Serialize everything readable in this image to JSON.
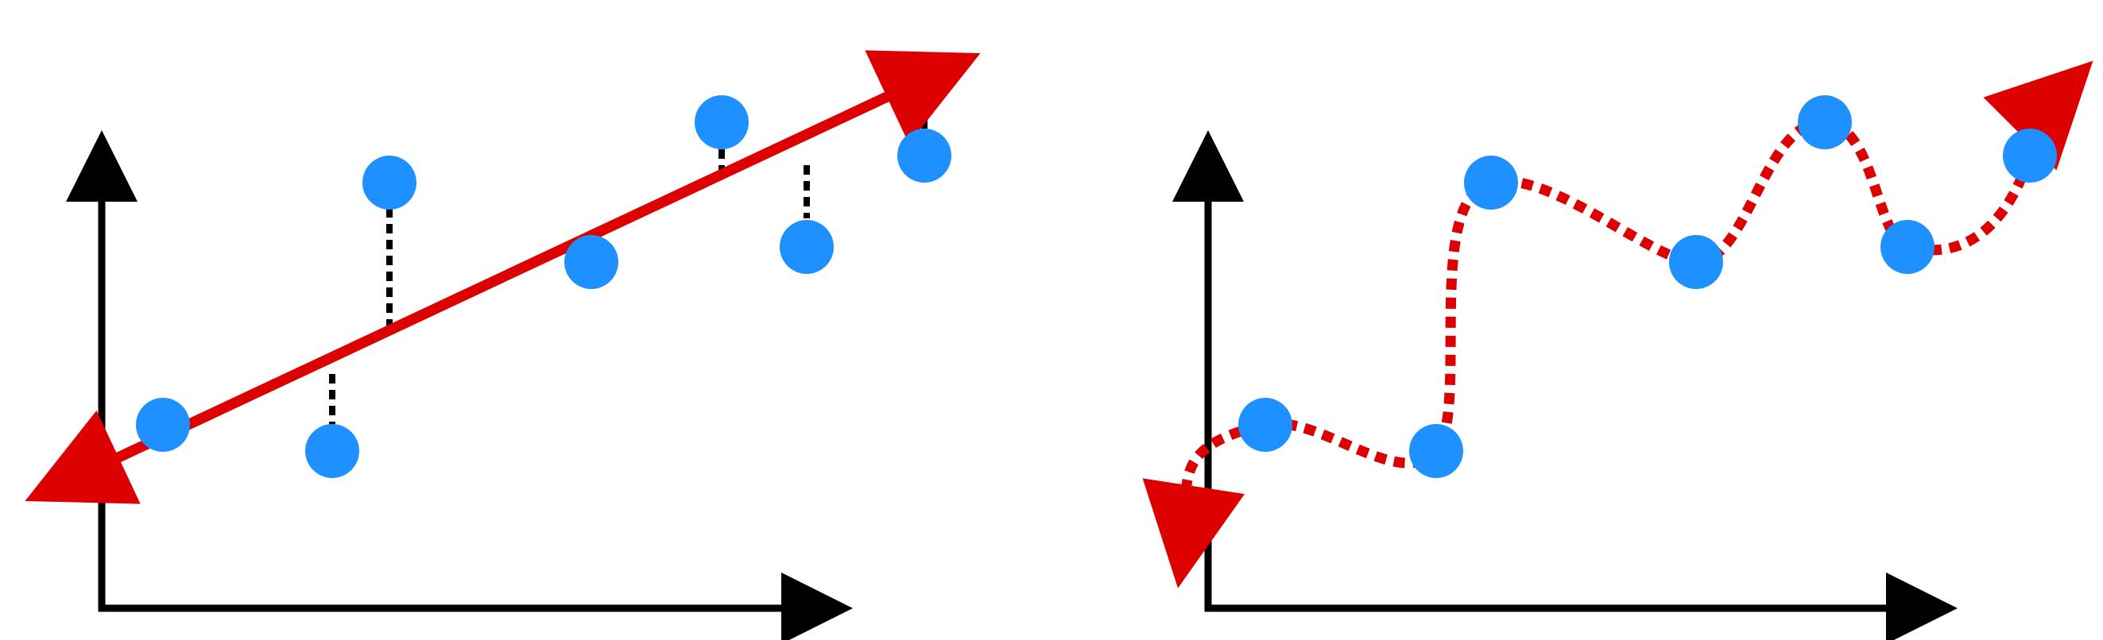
{
  "colors": {
    "background": "#ffffff",
    "axis": "#000000",
    "point": "#1e90ff",
    "fit_line": "#dd0000",
    "residual": "#000000"
  },
  "panels": [
    {
      "name": "linear-fit",
      "description_visible_text": "",
      "points": [
        {
          "x": 0.09,
          "y": 0.4
        },
        {
          "x": 0.3,
          "y": 0.34
        },
        {
          "x": 0.37,
          "y": 0.97
        },
        {
          "x": 0.66,
          "y": 0.78
        },
        {
          "x": 0.92,
          "y": 1.18
        },
        {
          "x": 0.81,
          "y": 0.8
        },
        {
          "x": 1.17,
          "y": 1.1
        }
      ],
      "fit_type": "straight-line",
      "fit_style": "solid",
      "residuals": true
    },
    {
      "name": "overfit-curve",
      "points": [
        {
          "x": 0.09,
          "y": 0.4
        },
        {
          "x": 0.3,
          "y": 0.34
        },
        {
          "x": 0.37,
          "y": 0.97
        },
        {
          "x": 0.66,
          "y": 0.78
        },
        {
          "x": 0.92,
          "y": 1.18
        },
        {
          "x": 0.81,
          "y": 0.8
        },
        {
          "x": 1.17,
          "y": 1.1
        }
      ],
      "fit_type": "wiggly-curve",
      "fit_style": "dotted",
      "residuals": false
    }
  ]
}
